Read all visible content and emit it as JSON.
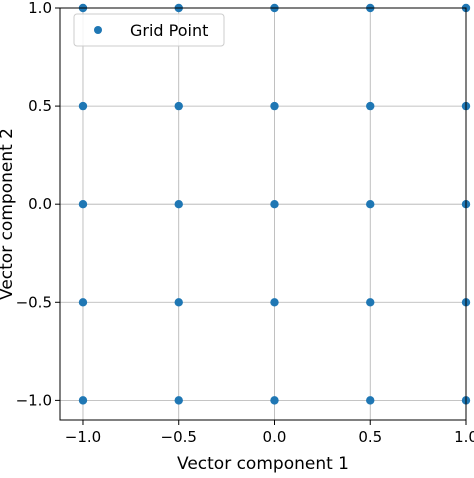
{
  "chart_data": {
    "type": "scatter",
    "title": "",
    "xlabel": "Vector component 1",
    "ylabel": "Vector component 2",
    "xlim": [
      -1.12,
      1.0
    ],
    "ylim": [
      -1.1,
      1.0
    ],
    "xticks": [
      -1.0,
      -0.5,
      0.0,
      0.5,
      1.0
    ],
    "xtick_labels": [
      "−1.0",
      "−0.5",
      "0.0",
      "0.5",
      "1.0"
    ],
    "yticks": [
      -1.0,
      -0.5,
      0.0,
      0.5,
      1.0
    ],
    "ytick_labels": [
      "−1.0",
      "−0.5",
      "0.0",
      "0.5",
      "1.0"
    ],
    "grid": true,
    "legend_position": "top-left",
    "series": [
      {
        "name": "Grid Point",
        "color": "#1f77b4",
        "x": [
          -1.0,
          -0.5,
          0.0,
          0.5,
          1.0,
          -1.0,
          -0.5,
          0.0,
          0.5,
          1.0,
          -1.0,
          -0.5,
          0.0,
          0.5,
          1.0,
          -1.0,
          -0.5,
          0.0,
          0.5,
          1.0,
          -1.0,
          -0.5,
          0.0,
          0.5,
          1.0
        ],
        "y": [
          1.0,
          1.0,
          1.0,
          1.0,
          1.0,
          0.5,
          0.5,
          0.5,
          0.5,
          0.5,
          0.0,
          0.0,
          0.0,
          0.0,
          0.0,
          -0.5,
          -0.5,
          -0.5,
          -0.5,
          -0.5,
          -1.0,
          -1.0,
          -1.0,
          -1.0,
          -1.0
        ]
      }
    ]
  }
}
